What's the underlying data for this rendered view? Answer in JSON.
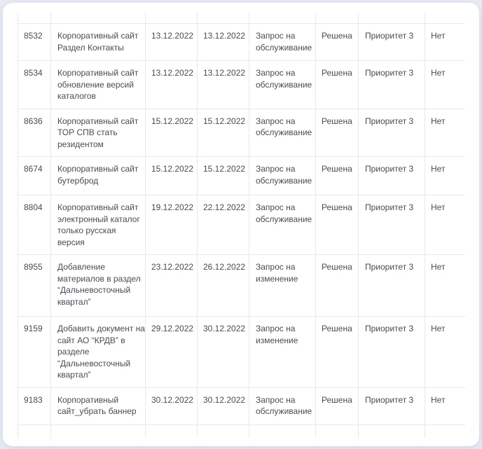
{
  "colors": {
    "page_bg": "#e8ecf4",
    "card_bg": "#ffffff",
    "table_border": "#e5e9f1",
    "text": "#474c54"
  },
  "tickets": {
    "rows": [
      {
        "id": "8532",
        "title": "Корпоративный сайт Раздел Контакты",
        "created": "13.12.2022",
        "resolved": "13.12.2022",
        "type": "Запрос на обслуживание",
        "status": "Решена",
        "priority": "Приоритет 3",
        "flag": "Нет"
      },
      {
        "id": "8534",
        "title": "Корпоративный сайт обновление версий каталогов",
        "created": "13.12.2022",
        "resolved": "13.12.2022",
        "type": "Запрос на обслуживание",
        "status": "Решена",
        "priority": "Приоритет 3",
        "flag": "Нет"
      },
      {
        "id": "8636",
        "title": "Корпоративный сайт ТОР СПВ стать резидентом",
        "created": "15.12.2022",
        "resolved": "15.12.2022",
        "type": "Запрос на обслуживание",
        "status": "Решена",
        "priority": "Приоритет 3",
        "flag": "Нет"
      },
      {
        "id": "8674",
        "title": "Корпоративный сайт бутерброд",
        "created": "15.12.2022",
        "resolved": "15.12.2022",
        "type": "Запрос на обслуживание",
        "status": "Решена",
        "priority": "Приоритет 3",
        "flag": "Нет"
      },
      {
        "id": "8804",
        "title": "Корпоративный сайт электронный каталог только русская версия",
        "created": "19.12.2022",
        "resolved": "22.12.2022",
        "type": "Запрос на обслуживание",
        "status": "Решена",
        "priority": "Приоритет 3",
        "flag": "Нет"
      },
      {
        "id": "8955",
        "title": "Добавление материалов в раздел “Дальневосточный квартал”",
        "created": "23.12.2022",
        "resolved": "26.12.2022",
        "type": "Запрос на изменение",
        "status": "Решена",
        "priority": "Приоритет 3",
        "flag": "Нет"
      },
      {
        "id": "9159",
        "title": "Добавить документ на сайт АО “КРДВ” в разделе “Дальневосточный квартал”",
        "created": "29.12.2022",
        "resolved": "30.12.2022",
        "type": "Запрос на изменение",
        "status": "Решена",
        "priority": "Приоритет 3",
        "flag": "Нет"
      },
      {
        "id": "9183",
        "title": "Корпоративный сайт_убрать баннер",
        "created": "30.12.2022",
        "resolved": "30.12.2022",
        "type": "Запрос на обслуживание",
        "status": "Решена",
        "priority": "Приоритет 3",
        "flag": "Нет"
      }
    ]
  }
}
